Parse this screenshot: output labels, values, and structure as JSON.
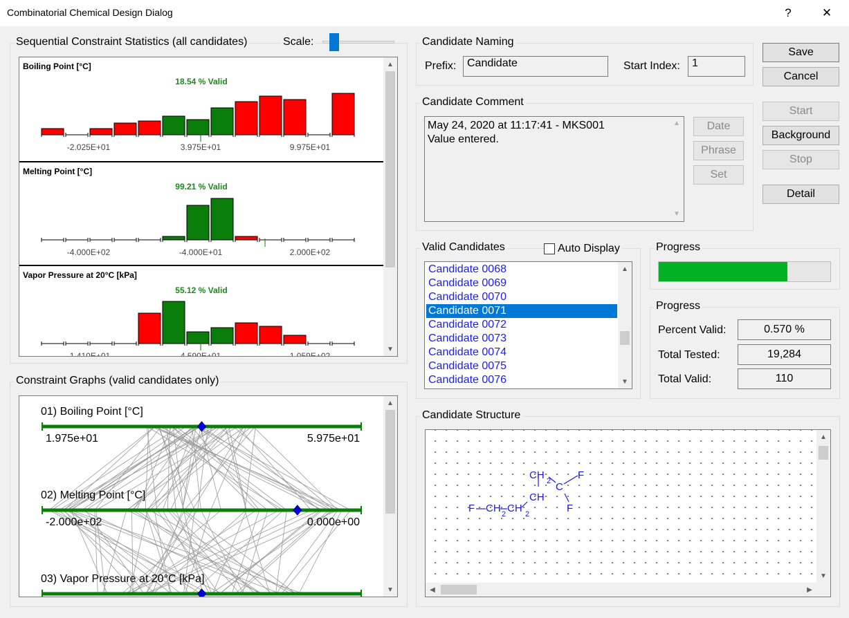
{
  "window": {
    "title": "Combinatorial Chemical Design Dialog",
    "help": "?",
    "close": "✕"
  },
  "stats": {
    "title": "Sequential Constraint Statistics (all candidates)",
    "scale_label": "Scale:",
    "histograms": [
      {
        "name": "Boiling Point [°C]",
        "valid": "18.54 % Valid",
        "ticks": [
          "-2.025E+01",
          "3.975E+01",
          "9.975E+01"
        ],
        "bars": [
          {
            "v": 0.09,
            "s": "red"
          },
          {
            "v": 0,
            "s": "none"
          },
          {
            "v": 0.09,
            "s": "red"
          },
          {
            "v": 0.17,
            "s": "red"
          },
          {
            "v": 0.2,
            "s": "red"
          },
          {
            "v": 0.27,
            "s": "green"
          },
          {
            "v": 0.22,
            "s": "green"
          },
          {
            "v": 0.39,
            "s": "green"
          },
          {
            "v": 0.48,
            "s": "red"
          },
          {
            "v": 0.56,
            "s": "red"
          },
          {
            "v": 0.51,
            "s": "red"
          },
          {
            "v": 0,
            "s": "none"
          },
          {
            "v": 0.6,
            "s": "red"
          }
        ]
      },
      {
        "name": "Melting Point [°C]",
        "valid": "99.21 % Valid",
        "ticks": [
          "-4.000E+02",
          "-4.000E+01",
          "2.000E+02"
        ],
        "bars": [
          {
            "v": 0,
            "s": "none"
          },
          {
            "v": 0,
            "s": "none"
          },
          {
            "v": 0,
            "s": "none"
          },
          {
            "v": 0,
            "s": "none"
          },
          {
            "v": 0,
            "s": "none"
          },
          {
            "v": 0.05,
            "s": "green"
          },
          {
            "v": 0.5,
            "s": "green"
          },
          {
            "v": 0.6,
            "s": "green"
          },
          {
            "v": 0.05,
            "s": "red"
          },
          {
            "v": 0,
            "s": "none"
          },
          {
            "v": 0,
            "s": "none"
          },
          {
            "v": 0,
            "s": "none"
          },
          {
            "v": 0,
            "s": "none"
          }
        ]
      },
      {
        "name": "Vapor Pressure at 20°C [kPa]",
        "valid": "55.12 % Valid",
        "ticks": [
          "-1.410E+01",
          "4.590E+01",
          "1.059E+02"
        ],
        "bars": [
          {
            "v": 0,
            "s": "none"
          },
          {
            "v": 0,
            "s": "none"
          },
          {
            "v": 0,
            "s": "none"
          },
          {
            "v": 0,
            "s": "none"
          },
          {
            "v": 0.44,
            "s": "red"
          },
          {
            "v": 0.61,
            "s": "green"
          },
          {
            "v": 0.17,
            "s": "green"
          },
          {
            "v": 0.23,
            "s": "green"
          },
          {
            "v": 0.3,
            "s": "red"
          },
          {
            "v": 0.25,
            "s": "red"
          },
          {
            "v": 0.12,
            "s": "red"
          },
          {
            "v": 0,
            "s": "none"
          },
          {
            "v": 0,
            "s": "none"
          }
        ]
      }
    ]
  },
  "graphs": {
    "title": "Constraint Graphs (valid candidates only)",
    "axes": [
      {
        "name": "01) Boiling Point [°C]",
        "min": "1.975e+01",
        "max": "5.975e+01",
        "marker": 0.5
      },
      {
        "name": "02) Melting Point [°C]",
        "min": "-2.000e+02",
        "max": "0.000e+00",
        "marker": 0.8
      },
      {
        "name": "03) Vapor Pressure at 20°C [kPa]",
        "min": "",
        "max": "",
        "marker": 0.5
      }
    ]
  },
  "naming": {
    "title": "Candidate Naming",
    "prefix_label": "Prefix:",
    "prefix_value": "Candidate",
    "start_label": "Start Index:",
    "start_value": "1"
  },
  "comment": {
    "title": "Candidate Comment",
    "line1": "May 24, 2020 at 11:17:41 - MKS001",
    "line2": "Value entered.",
    "date": "Date",
    "phrase": "Phrase",
    "set": "Set"
  },
  "buttons": {
    "save": "Save",
    "cancel": "Cancel",
    "start": "Start",
    "background": "Background",
    "stop": "Stop",
    "detail": "Detail"
  },
  "valid": {
    "title": "Valid Candidates",
    "auto_display": "Auto Display",
    "items": [
      "Candidate 0068",
      "Candidate 0069",
      "Candidate 0070",
      "Candidate 0071",
      "Candidate 0072",
      "Candidate 0073",
      "Candidate 0074",
      "Candidate 0075",
      "Candidate 0076"
    ],
    "selected_index": 3
  },
  "progress": {
    "title": "Progress",
    "fraction": 0.75
  },
  "progress2": {
    "title": "Progress",
    "percent_label": "Percent Valid:",
    "percent_value": "0.570 %",
    "tested_label": "Total Tested:",
    "tested_value": "19,284",
    "total_label": "Total Valid:",
    "total_value": "110"
  },
  "structure": {
    "title": "Candidate Structure",
    "atoms": {
      "f1": "F",
      "ch2a": "CH",
      "ch2b": "CH",
      "sub2": "2",
      "ch": "CH",
      "ch2top": "CH",
      "c": "C",
      "f2": "F",
      "f3": "F"
    }
  }
}
